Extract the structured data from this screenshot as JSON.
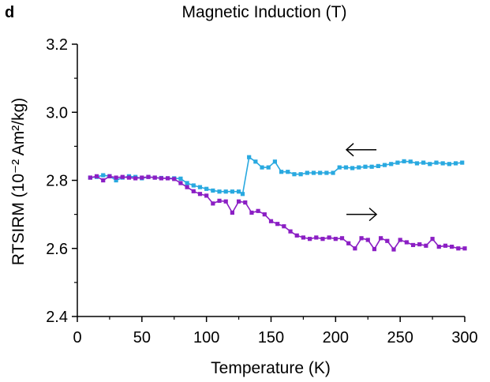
{
  "panel_label": "d",
  "top_axis_title": "Magnetic Induction (T)",
  "colors": {
    "series_1": "#29a9e0",
    "series_2": "#8b1fc4",
    "axis": "#000000"
  },
  "chart_data": {
    "type": "line",
    "xlabel": "Temperature (K)",
    "ylabel": "RTSIRM (10⁻² Am²/kg)",
    "xlim": [
      0,
      300
    ],
    "ylim": [
      2.4,
      3.2
    ],
    "x_ticks": [
      "0",
      "50",
      "100",
      "150",
      "200",
      "250",
      "300"
    ],
    "y_ticks": [
      "2.4",
      "2.6",
      "2.8",
      "3.0",
      "3.2"
    ],
    "grid": false,
    "annotations": [
      {
        "symbol": "←",
        "x": 220,
        "y": 2.89
      },
      {
        "symbol": "→",
        "x": 220,
        "y": 2.7
      }
    ],
    "series": [
      {
        "color": "#29a9e0",
        "x": [
          10,
          15,
          20,
          25,
          30,
          35,
          40,
          45,
          50,
          55,
          60,
          65,
          70,
          75,
          80,
          85,
          90,
          95,
          100,
          105,
          110,
          115,
          120,
          125,
          128,
          133,
          138,
          143,
          148,
          153,
          158,
          163,
          168,
          173,
          178,
          183,
          188,
          193,
          198,
          203,
          208,
          213,
          218,
          223,
          228,
          233,
          238,
          243,
          248,
          253,
          258,
          263,
          268,
          273,
          278,
          283,
          288,
          293,
          298
        ],
        "y": [
          2.808,
          2.81,
          2.815,
          2.812,
          2.8,
          2.808,
          2.812,
          2.81,
          2.806,
          2.81,
          2.808,
          2.807,
          2.806,
          2.806,
          2.805,
          2.792,
          2.785,
          2.78,
          2.775,
          2.77,
          2.767,
          2.767,
          2.767,
          2.767,
          2.76,
          2.868,
          2.855,
          2.838,
          2.838,
          2.855,
          2.825,
          2.825,
          2.818,
          2.818,
          2.822,
          2.822,
          2.822,
          2.822,
          2.822,
          2.838,
          2.838,
          2.836,
          2.838,
          2.84,
          2.84,
          2.842,
          2.845,
          2.848,
          2.852,
          2.856,
          2.855,
          2.85,
          2.852,
          2.848,
          2.852,
          2.85,
          2.848,
          2.85,
          2.852
        ]
      },
      {
        "color": "#8b1fc4",
        "x": [
          10,
          15,
          20,
          25,
          30,
          35,
          40,
          45,
          50,
          55,
          60,
          65,
          70,
          75,
          80,
          85,
          90,
          95,
          100,
          105,
          110,
          115,
          120,
          125,
          130,
          135,
          140,
          145,
          150,
          155,
          160,
          165,
          170,
          175,
          180,
          185,
          190,
          195,
          200,
          205,
          210,
          215,
          220,
          225,
          230,
          235,
          240,
          245,
          250,
          255,
          260,
          265,
          270,
          275,
          280,
          285,
          290,
          295,
          300
        ],
        "y": [
          2.808,
          2.812,
          2.8,
          2.812,
          2.808,
          2.81,
          2.808,
          2.806,
          2.808,
          2.81,
          2.808,
          2.806,
          2.806,
          2.804,
          2.792,
          2.78,
          2.768,
          2.76,
          2.755,
          2.732,
          2.74,
          2.738,
          2.705,
          2.738,
          2.735,
          2.705,
          2.71,
          2.7,
          2.68,
          2.672,
          2.665,
          2.65,
          2.638,
          2.632,
          2.628,
          2.632,
          2.628,
          2.632,
          2.628,
          2.63,
          2.615,
          2.6,
          2.63,
          2.625,
          2.598,
          2.63,
          2.622,
          2.597,
          2.625,
          2.618,
          2.61,
          2.612,
          2.608,
          2.628,
          2.605,
          2.608,
          2.605,
          2.6,
          2.6
        ]
      }
    ]
  }
}
